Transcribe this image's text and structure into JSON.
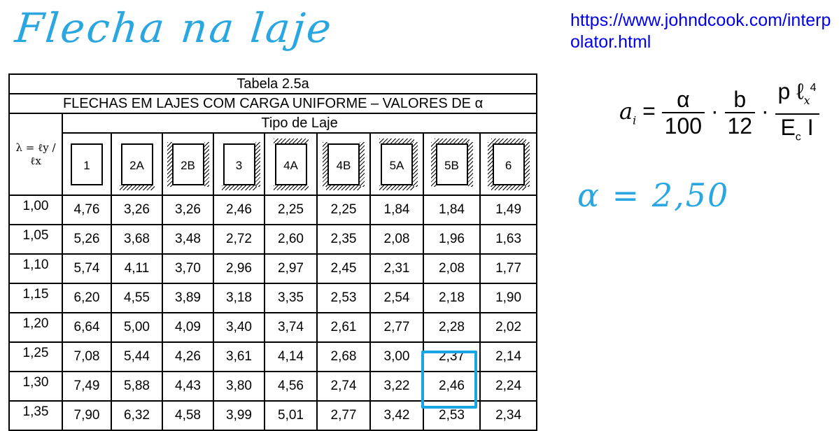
{
  "handwritten": {
    "title": "Flecha na laje",
    "note": "α = 2,50"
  },
  "url": "https://www.johndcook.com/interpolator.html",
  "formula": {
    "lhs": "a",
    "lhs_sub": "i",
    "f1_num": "α",
    "f1_den": "100",
    "f2_num": "b",
    "f2_den": "12",
    "f3_num": "p ℓ",
    "f3_num_sub": "x",
    "f3_num_sup": "4",
    "f3_den": "E",
    "f3_den_sub": "c",
    "f3_den_tail": " I"
  },
  "table": {
    "caption": "Tabela 2.5a",
    "title": "FLECHAS EM LAJES COM CARGA UNIFORME – VALORES DE α",
    "subheader": "Tipo de Laje",
    "lambda_label": "λ = ℓy / ℓx",
    "types": [
      "1",
      "2A",
      "2B",
      "3",
      "4A",
      "4B",
      "5A",
      "5B",
      "6"
    ],
    "rows": [
      {
        "lambda": "1,00",
        "values": [
          "4,76",
          "3,26",
          "3,26",
          "2,46",
          "2,25",
          "2,25",
          "1,84",
          "1,84",
          "1,49"
        ]
      },
      {
        "lambda": "1,05",
        "values": [
          "5,26",
          "3,68",
          "3,48",
          "2,72",
          "2,60",
          "2,35",
          "2,08",
          "1,96",
          "1,63"
        ]
      },
      {
        "lambda": "1,10",
        "values": [
          "5,74",
          "4,11",
          "3,70",
          "2,96",
          "2,97",
          "2,45",
          "2,31",
          "2,08",
          "1,77"
        ]
      },
      {
        "lambda": "1,15",
        "values": [
          "6,20",
          "4,55",
          "3,89",
          "3,18",
          "3,35",
          "2,53",
          "2,54",
          "2,18",
          "1,90"
        ]
      },
      {
        "lambda": "1,20",
        "values": [
          "6,64",
          "5,00",
          "4,09",
          "3,40",
          "3,74",
          "2,61",
          "2,77",
          "2,28",
          "2,02"
        ]
      },
      {
        "lambda": "1,25",
        "values": [
          "7,08",
          "5,44",
          "4,26",
          "3,61",
          "4,14",
          "2,68",
          "3,00",
          "2,37",
          "2,14"
        ]
      },
      {
        "lambda": "1,30",
        "values": [
          "7,49",
          "5,88",
          "4,43",
          "3,80",
          "4,56",
          "2,74",
          "3,22",
          "2,46",
          "2,24"
        ]
      },
      {
        "lambda": "1,35",
        "values": [
          "7,90",
          "6,32",
          "4,58",
          "3,99",
          "5,01",
          "2,77",
          "3,42",
          "2,53",
          "2,34"
        ]
      }
    ]
  },
  "colors": {
    "handwriting": "#2aa7e0",
    "link": "#0000ee",
    "highlight": "#19a5e3"
  }
}
